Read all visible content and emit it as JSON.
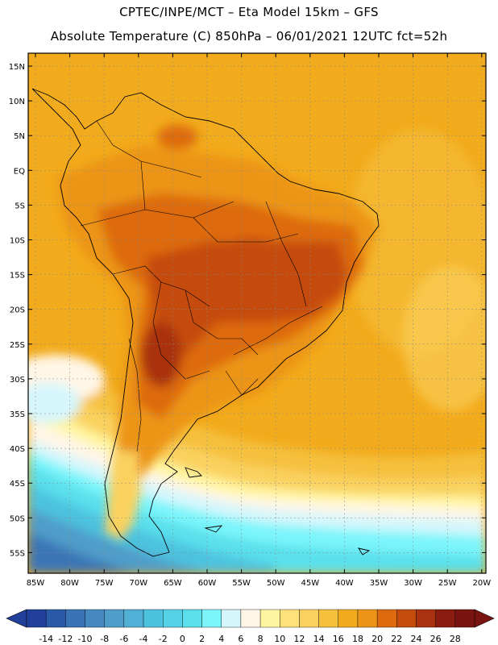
{
  "title": {
    "line1": "CPTEC/INPE/MCT –   Eta Model 15km – GFS",
    "line2": "Absolute Temperature (C) 850hPa – 06/01/2021 12UTC fct=52h"
  },
  "map": {
    "lat_labels": [
      "15N",
      "10N",
      "5N",
      "EQ",
      "5S",
      "10S",
      "15S",
      "20S",
      "25S",
      "30S",
      "35S",
      "40S",
      "45S",
      "50S",
      "55S"
    ],
    "lon_labels": [
      "85W",
      "80W",
      "75W",
      "70W",
      "65W",
      "60W",
      "55W",
      "50W",
      "45W",
      "40W",
      "35W",
      "30W",
      "25W",
      "20W"
    ]
  },
  "colorbar": {
    "labels": [
      "-14",
      "-12",
      "-10",
      "-8",
      "-6",
      "-4",
      "-2",
      "0",
      "2",
      "4",
      "6",
      "8",
      "10",
      "12",
      "14",
      "16",
      "18",
      "20",
      "22",
      "24",
      "26",
      "28"
    ],
    "colors": [
      "#21409a",
      "#2a5aa8",
      "#3a74b6",
      "#4589c0",
      "#4f9dc9",
      "#52b0d6",
      "#4dc2df",
      "#55d2e6",
      "#5ae0ec",
      "#7cf5fb",
      "#d6f6fc",
      "#fff6e6",
      "#fff5a0",
      "#fde17a",
      "#fad15e",
      "#f5c03c",
      "#f2ab1c",
      "#ec9417",
      "#dd6a0e",
      "#c44c0d",
      "#a93210",
      "#8a1d10",
      "#7a1410"
    ]
  }
}
